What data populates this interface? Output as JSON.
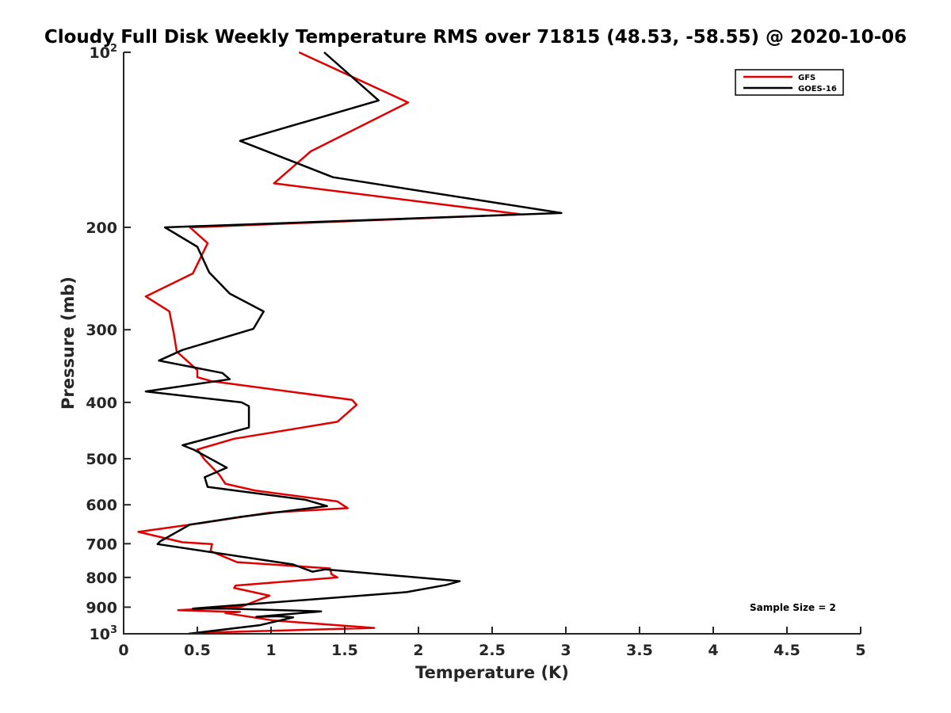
{
  "chart_data": {
    "type": "line",
    "title": "Cloudy Full Disk Weekly Temperature RMS over 71815 (48.53, -58.55) @ 2020-10-06",
    "xlabel": "Temperature (K)",
    "ylabel": "Pressure (mb)",
    "xlim": [
      0,
      5
    ],
    "ylim": [
      100,
      1000
    ],
    "yscale": "log",
    "y_reversed": true,
    "grid": false,
    "legend_position": "top-right",
    "x_ticks": [
      {
        "value": 0,
        "label": "0"
      },
      {
        "value": 0.5,
        "label": "0.5"
      },
      {
        "value": 1,
        "label": "1"
      },
      {
        "value": 1.5,
        "label": "1.5"
      },
      {
        "value": 2,
        "label": "2"
      },
      {
        "value": 2.5,
        "label": "2.5"
      },
      {
        "value": 3,
        "label": "3"
      },
      {
        "value": 3.5,
        "label": "3.5"
      },
      {
        "value": 4,
        "label": "4"
      },
      {
        "value": 4.5,
        "label": "4.5"
      },
      {
        "value": 5,
        "label": "5"
      }
    ],
    "y_ticks": [
      {
        "value": 100,
        "base": "10",
        "exp": "2"
      },
      {
        "value": 200,
        "base": "200",
        "exp": ""
      },
      {
        "value": 300,
        "base": "300",
        "exp": ""
      },
      {
        "value": 400,
        "base": "400",
        "exp": ""
      },
      {
        "value": 500,
        "base": "500",
        "exp": ""
      },
      {
        "value": 600,
        "base": "600",
        "exp": ""
      },
      {
        "value": 700,
        "base": "700",
        "exp": ""
      },
      {
        "value": 800,
        "base": "800",
        "exp": ""
      },
      {
        "value": 900,
        "base": "900",
        "exp": ""
      },
      {
        "value": 1000,
        "base": "10",
        "exp": "3"
      }
    ],
    "series": [
      {
        "name": "GFS",
        "color": "#e00000",
        "points": [
          [
            1.19,
            100
          ],
          [
            1.93,
            122
          ],
          [
            1.27,
            148
          ],
          [
            1.02,
            168
          ],
          [
            2.7,
            190
          ],
          [
            0.45,
            200
          ],
          [
            0.57,
            213
          ],
          [
            0.47,
            240
          ],
          [
            0.15,
            263
          ],
          [
            0.31,
            279
          ],
          [
            0.34,
            304
          ],
          [
            0.36,
            327
          ],
          [
            0.5,
            352
          ],
          [
            0.5,
            362
          ],
          [
            0.6,
            368
          ],
          [
            1.55,
            396
          ],
          [
            1.58,
            404
          ],
          [
            1.45,
            432
          ],
          [
            0.75,
            462
          ],
          [
            0.5,
            482
          ],
          [
            0.55,
            502
          ],
          [
            0.65,
            533
          ],
          [
            0.69,
            552
          ],
          [
            0.89,
            567
          ],
          [
            1.45,
            592
          ],
          [
            1.52,
            608
          ],
          [
            0.99,
            619
          ],
          [
            0.55,
            644
          ],
          [
            0.1,
            668
          ],
          [
            0.4,
            696
          ],
          [
            0.6,
            701
          ],
          [
            0.59,
            721
          ],
          [
            0.77,
            753
          ],
          [
            1.4,
            772
          ],
          [
            1.41,
            790
          ],
          [
            1.45,
            800
          ],
          [
            0.76,
            826
          ],
          [
            0.75,
            834
          ],
          [
            0.99,
            860
          ],
          [
            0.8,
            898
          ],
          [
            0.37,
            911
          ],
          [
            0.68,
            916
          ],
          [
            0.79,
            917
          ],
          [
            0.69,
            921
          ],
          [
            1.02,
            949
          ],
          [
            1.7,
            977
          ],
          [
            0.5,
            996
          ]
        ]
      },
      {
        "name": "GOES-16",
        "color": "#000000",
        "points": [
          [
            1.36,
            100
          ],
          [
            1.73,
            121
          ],
          [
            0.79,
            142
          ],
          [
            1.42,
            164
          ],
          [
            2.97,
            189
          ],
          [
            0.28,
            200
          ],
          [
            0.5,
            216
          ],
          [
            0.58,
            239
          ],
          [
            0.72,
            260
          ],
          [
            0.95,
            279
          ],
          [
            0.88,
            299
          ],
          [
            0.4,
            325
          ],
          [
            0.24,
            339
          ],
          [
            0.67,
            356
          ],
          [
            0.72,
            365
          ],
          [
            0.15,
            383
          ],
          [
            0.8,
            400
          ],
          [
            0.85,
            406
          ],
          [
            0.85,
            442
          ],
          [
            0.4,
            474
          ],
          [
            0.48,
            483
          ],
          [
            0.62,
            505
          ],
          [
            0.7,
            518
          ],
          [
            0.55,
            538
          ],
          [
            0.57,
            559
          ],
          [
            1.23,
            588
          ],
          [
            1.38,
            603
          ],
          [
            0.8,
            629
          ],
          [
            0.45,
            649
          ],
          [
            0.25,
            693
          ],
          [
            0.23,
            701
          ],
          [
            1.15,
            760
          ],
          [
            1.28,
            782
          ],
          [
            1.37,
            775
          ],
          [
            2.28,
            812
          ],
          [
            2.19,
            824
          ],
          [
            1.92,
            848
          ],
          [
            0.47,
            905
          ],
          [
            0.7,
            905
          ],
          [
            1.34,
            915
          ],
          [
            0.9,
            935
          ],
          [
            1.05,
            933
          ],
          [
            1.15,
            937
          ],
          [
            0.92,
            967
          ],
          [
            0.44,
            1000
          ]
        ]
      }
    ],
    "legend": {
      "entries": [
        "GFS",
        "GOES-16"
      ]
    },
    "annotation": "Sample Size = 2"
  }
}
